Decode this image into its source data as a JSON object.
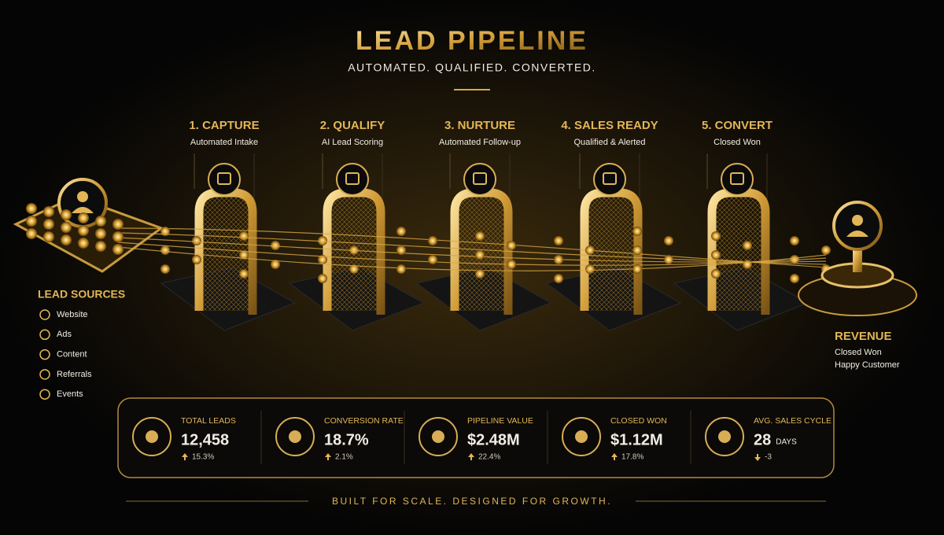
{
  "header": {
    "title": "LEAD PIPELINE",
    "subtitle": "AUTOMATED. QUALIFIED. CONVERTED."
  },
  "stages": [
    {
      "label": "1. CAPTURE",
      "caption": "Automated Intake"
    },
    {
      "label": "2. QUALIFY",
      "caption": "AI Lead Scoring"
    },
    {
      "label": "3. NURTURE",
      "caption": "Automated Follow-up"
    },
    {
      "label": "4. SALES READY",
      "caption": "Qualified & Alerted"
    },
    {
      "label": "5. CONVERT",
      "caption": "Closed Won"
    }
  ],
  "sources": {
    "title": "LEAD SOURCES",
    "items": [
      "Website",
      "Ads",
      "Content",
      "Referrals",
      "Events"
    ]
  },
  "revenue": {
    "title": "REVENUE",
    "lines": [
      "Closed Won",
      "Happy Customer"
    ]
  },
  "metrics": [
    {
      "label": "TOTAL LEADS",
      "value": "12,458",
      "change": "15.3%"
    },
    {
      "label": "CONVERSION RATE",
      "value": "18.7%",
      "change": "2.1%"
    },
    {
      "label": "PIPELINE VALUE",
      "value": "$2.48M",
      "change": "22.4%"
    },
    {
      "label": "CLOSED WON",
      "value": "$1.12M",
      "change": "17.8%"
    },
    {
      "label": "AVG. SALES CYCLE",
      "value": "28",
      "unit": "DAYS",
      "change": "-3"
    }
  ],
  "footer": "BUILT FOR SCALE. DESIGNED FOR GROWTH."
}
